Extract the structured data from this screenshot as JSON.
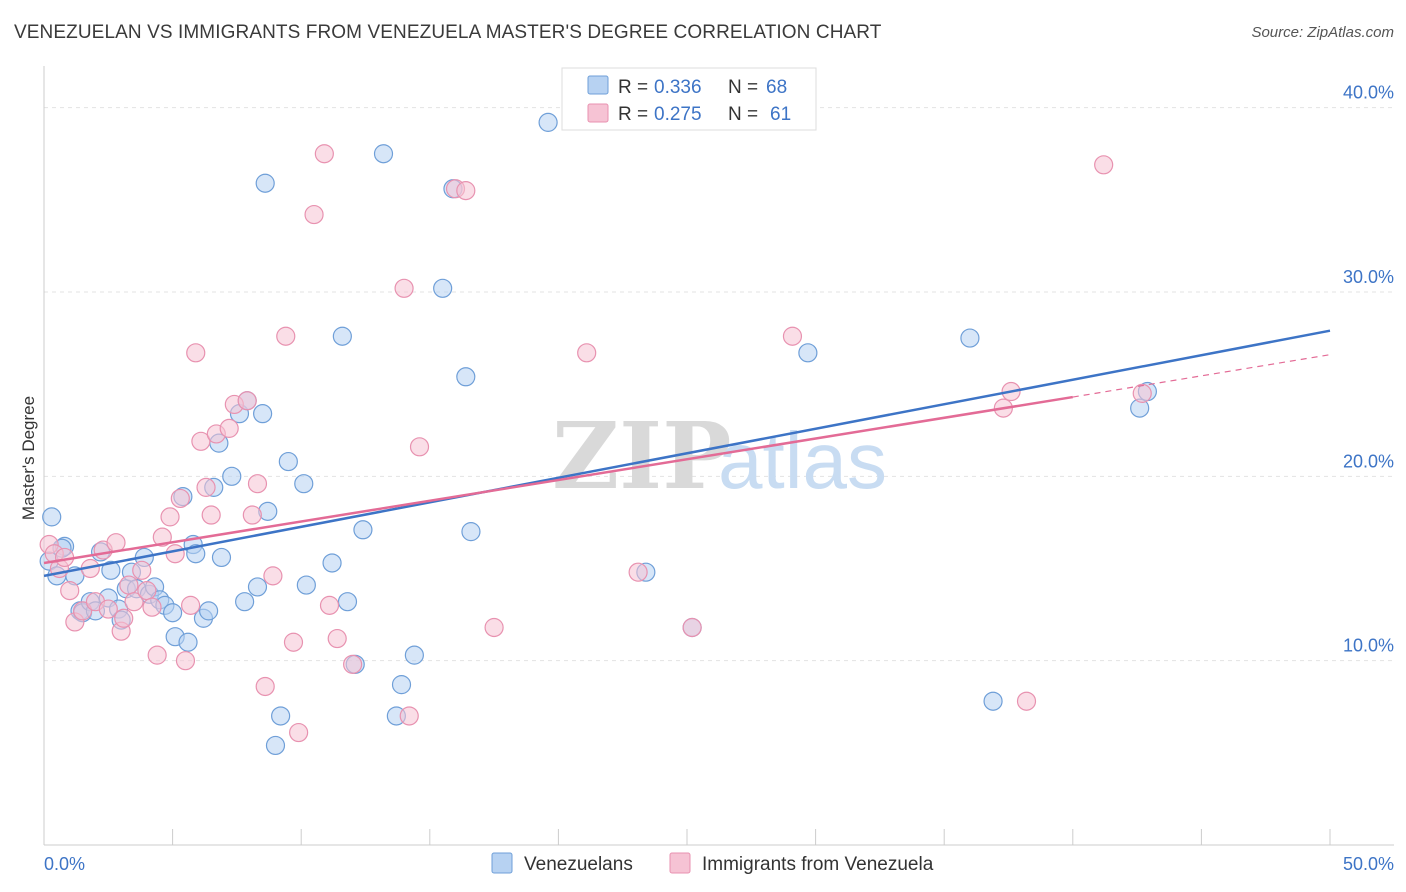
{
  "title": "VENEZUELAN VS IMMIGRANTS FROM VENEZUELA MASTER'S DEGREE CORRELATION CHART",
  "source": "Source: ZipAtlas.com",
  "watermark": {
    "zip": "ZIP",
    "atlas": "atlas"
  },
  "colors": {
    "blue": "#3d74c6",
    "blue_fill": "#b7d2f2",
    "blue_stroke": "#6f9fd8",
    "pink": "#e36b96",
    "pink_fill": "#f6c3d4",
    "pink_stroke": "#e892b0",
    "grid": "#e3e3e3"
  },
  "legend": {
    "rows": [
      {
        "r_label": "R = ",
        "r_value": "0.336",
        "n_label": "N = ",
        "n_value": "68"
      },
      {
        "r_label": "R = ",
        "r_value": "0.275",
        "n_label": "N = ",
        "n_value": "61"
      }
    ]
  },
  "chart_data": {
    "type": "scatter",
    "title": "VENEZUELAN VS IMMIGRANTS FROM VENEZUELA MASTER'S DEGREE CORRELATION CHART",
    "xlabel": "",
    "ylabel": "Master's Degree",
    "xlim": [
      0,
      50
    ],
    "ylim": [
      0,
      41.5
    ],
    "x_tick_labels": [
      "0.0%",
      "50.0%"
    ],
    "y_ticks": [
      10,
      20,
      30,
      40
    ],
    "y_tick_labels": [
      "10.0%",
      "20.0%",
      "30.0%",
      "40.0%"
    ],
    "grid": true,
    "legend_position": "top-center",
    "series": [
      {
        "name": "Venezuelans",
        "r": 0.336,
        "n": 68,
        "trend": {
          "x0": 0,
          "y0": 14.6,
          "x1": 50,
          "y1": 27.9
        },
        "points": [
          [
            0.3,
            17.8
          ],
          [
            0.2,
            15.4
          ],
          [
            0.5,
            14.6
          ],
          [
            0.8,
            16.2
          ],
          [
            0.7,
            16.1
          ],
          [
            1.2,
            14.6
          ],
          [
            1.4,
            12.7
          ],
          [
            1.5,
            12.6
          ],
          [
            1.8,
            13.2
          ],
          [
            2.0,
            12.7
          ],
          [
            2.2,
            15.9
          ],
          [
            2.5,
            13.4
          ],
          [
            2.6,
            14.9
          ],
          [
            2.9,
            12.8
          ],
          [
            3.0,
            12.2
          ],
          [
            3.2,
            13.9
          ],
          [
            3.4,
            14.8
          ],
          [
            3.6,
            13.9
          ],
          [
            3.9,
            15.6
          ],
          [
            4.1,
            13.6
          ],
          [
            4.3,
            14.0
          ],
          [
            4.5,
            13.3
          ],
          [
            4.7,
            13.0
          ],
          [
            5.0,
            12.6
          ],
          [
            5.1,
            11.3
          ],
          [
            5.4,
            18.9
          ],
          [
            5.6,
            11.0
          ],
          [
            5.8,
            16.3
          ],
          [
            5.9,
            15.8
          ],
          [
            6.2,
            12.3
          ],
          [
            6.4,
            12.7
          ],
          [
            6.6,
            19.4
          ],
          [
            6.8,
            21.8
          ],
          [
            6.9,
            15.6
          ],
          [
            7.3,
            20.0
          ],
          [
            7.6,
            23.4
          ],
          [
            7.8,
            13.2
          ],
          [
            7.9,
            24.1
          ],
          [
            8.3,
            14.0
          ],
          [
            8.5,
            23.4
          ],
          [
            8.7,
            18.1
          ],
          [
            8.6,
            35.9
          ],
          [
            9.0,
            5.4
          ],
          [
            9.2,
            7.0
          ],
          [
            9.5,
            20.8
          ],
          [
            10.1,
            19.6
          ],
          [
            10.2,
            14.1
          ],
          [
            11.2,
            15.3
          ],
          [
            11.6,
            27.6
          ],
          [
            11.8,
            13.2
          ],
          [
            12.1,
            9.8
          ],
          [
            12.4,
            17.1
          ],
          [
            13.2,
            37.5
          ],
          [
            13.7,
            7.0
          ],
          [
            13.9,
            8.7
          ],
          [
            14.4,
            10.3
          ],
          [
            15.5,
            30.2
          ],
          [
            15.9,
            35.6
          ],
          [
            16.4,
            25.4
          ],
          [
            16.6,
            17.0
          ],
          [
            19.6,
            39.2
          ],
          [
            23.4,
            14.8
          ],
          [
            25.2,
            11.8
          ],
          [
            29.7,
            26.7
          ],
          [
            36.0,
            27.5
          ],
          [
            36.9,
            7.8
          ],
          [
            42.6,
            23.7
          ],
          [
            42.9,
            24.6
          ]
        ]
      },
      {
        "name": "Immigrants from Venezuela",
        "r": 0.275,
        "n": 61,
        "trend": {
          "x0": 0,
          "y0": 15.3,
          "x1": 40,
          "y1": 24.3
        },
        "trend_ext": {
          "x0": 40,
          "y0": 24.3,
          "x1": 50,
          "y1": 26.6
        },
        "points": [
          [
            0.2,
            16.3
          ],
          [
            0.4,
            15.8
          ],
          [
            0.6,
            15.0
          ],
          [
            0.8,
            15.6
          ],
          [
            1.0,
            13.8
          ],
          [
            1.2,
            12.1
          ],
          [
            1.5,
            12.7
          ],
          [
            1.8,
            15.0
          ],
          [
            2.0,
            13.2
          ],
          [
            2.3,
            16.0
          ],
          [
            2.5,
            12.8
          ],
          [
            2.8,
            16.4
          ],
          [
            3.0,
            11.6
          ],
          [
            3.1,
            12.3
          ],
          [
            3.3,
            14.1
          ],
          [
            3.5,
            13.2
          ],
          [
            3.8,
            14.9
          ],
          [
            4.0,
            13.8
          ],
          [
            4.2,
            12.9
          ],
          [
            4.4,
            10.3
          ],
          [
            4.6,
            16.7
          ],
          [
            4.9,
            17.8
          ],
          [
            5.1,
            15.8
          ],
          [
            5.3,
            18.8
          ],
          [
            5.5,
            10.0
          ],
          [
            5.7,
            13.0
          ],
          [
            5.9,
            26.7
          ],
          [
            6.1,
            21.9
          ],
          [
            6.3,
            19.4
          ],
          [
            6.5,
            17.9
          ],
          [
            6.7,
            22.3
          ],
          [
            7.2,
            22.6
          ],
          [
            7.4,
            23.9
          ],
          [
            7.9,
            24.1
          ],
          [
            8.1,
            17.9
          ],
          [
            8.3,
            19.6
          ],
          [
            8.6,
            8.6
          ],
          [
            8.9,
            14.6
          ],
          [
            9.4,
            27.6
          ],
          [
            9.7,
            11.0
          ],
          [
            9.9,
            6.1
          ],
          [
            10.5,
            34.2
          ],
          [
            10.9,
            37.5
          ],
          [
            11.1,
            13.0
          ],
          [
            11.4,
            11.2
          ],
          [
            12.0,
            9.8
          ],
          [
            14.0,
            30.2
          ],
          [
            14.2,
            7.0
          ],
          [
            14.6,
            21.6
          ],
          [
            16.0,
            35.6
          ],
          [
            16.4,
            35.5
          ],
          [
            17.5,
            11.8
          ],
          [
            21.1,
            26.7
          ],
          [
            23.1,
            14.8
          ],
          [
            25.2,
            11.8
          ],
          [
            29.1,
            27.6
          ],
          [
            37.3,
            23.7
          ],
          [
            37.6,
            24.6
          ],
          [
            38.2,
            7.8
          ],
          [
            41.2,
            36.9
          ],
          [
            42.7,
            24.5
          ]
        ]
      }
    ]
  }
}
